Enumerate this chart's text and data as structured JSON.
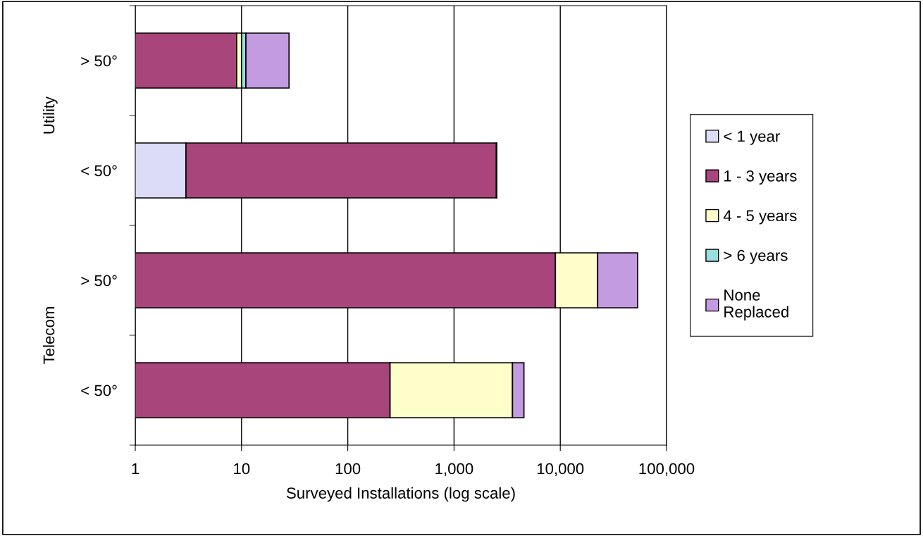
{
  "chart_data": {
    "type": "bar",
    "orientation": "horizontal",
    "stacked": true,
    "log": "x",
    "xlabel": "Surveyed Installations (log scale)",
    "categories": [
      "> 50°",
      "< 50°",
      "> 50°",
      "< 50°"
    ],
    "annotations": [
      "Utility",
      "Telecom"
    ],
    "series": [
      {
        "name": "< 1 year",
        "color": "#dcdcf8",
        "values": [
          null,
          3,
          null,
          null
        ]
      },
      {
        "name": "1 - 3 years",
        "color": "#a8457a",
        "values": [
          9,
          2500,
          9000,
          250
        ]
      },
      {
        "name": "4 - 5 years",
        "color": "#ffffcc",
        "values": [
          1,
          null,
          13500,
          3300
        ]
      },
      {
        "name": "> 6 years",
        "color": "#99dddd",
        "values": [
          1,
          null,
          null,
          null
        ]
      },
      {
        "name": "None\nReplaced",
        "color": "#c39be0",
        "values": [
          17,
          20,
          31000,
          1000
        ]
      }
    ],
    "xlim": [
      1,
      100000
    ],
    "xticks": [
      1,
      10,
      100,
      {
        "value": 1000,
        "label": "1,000"
      },
      {
        "value": 10000,
        "label": "10,000"
      },
      {
        "value": 100000,
        "label": "100,000"
      }
    ],
    "grid": "x",
    "legend": "right"
  }
}
